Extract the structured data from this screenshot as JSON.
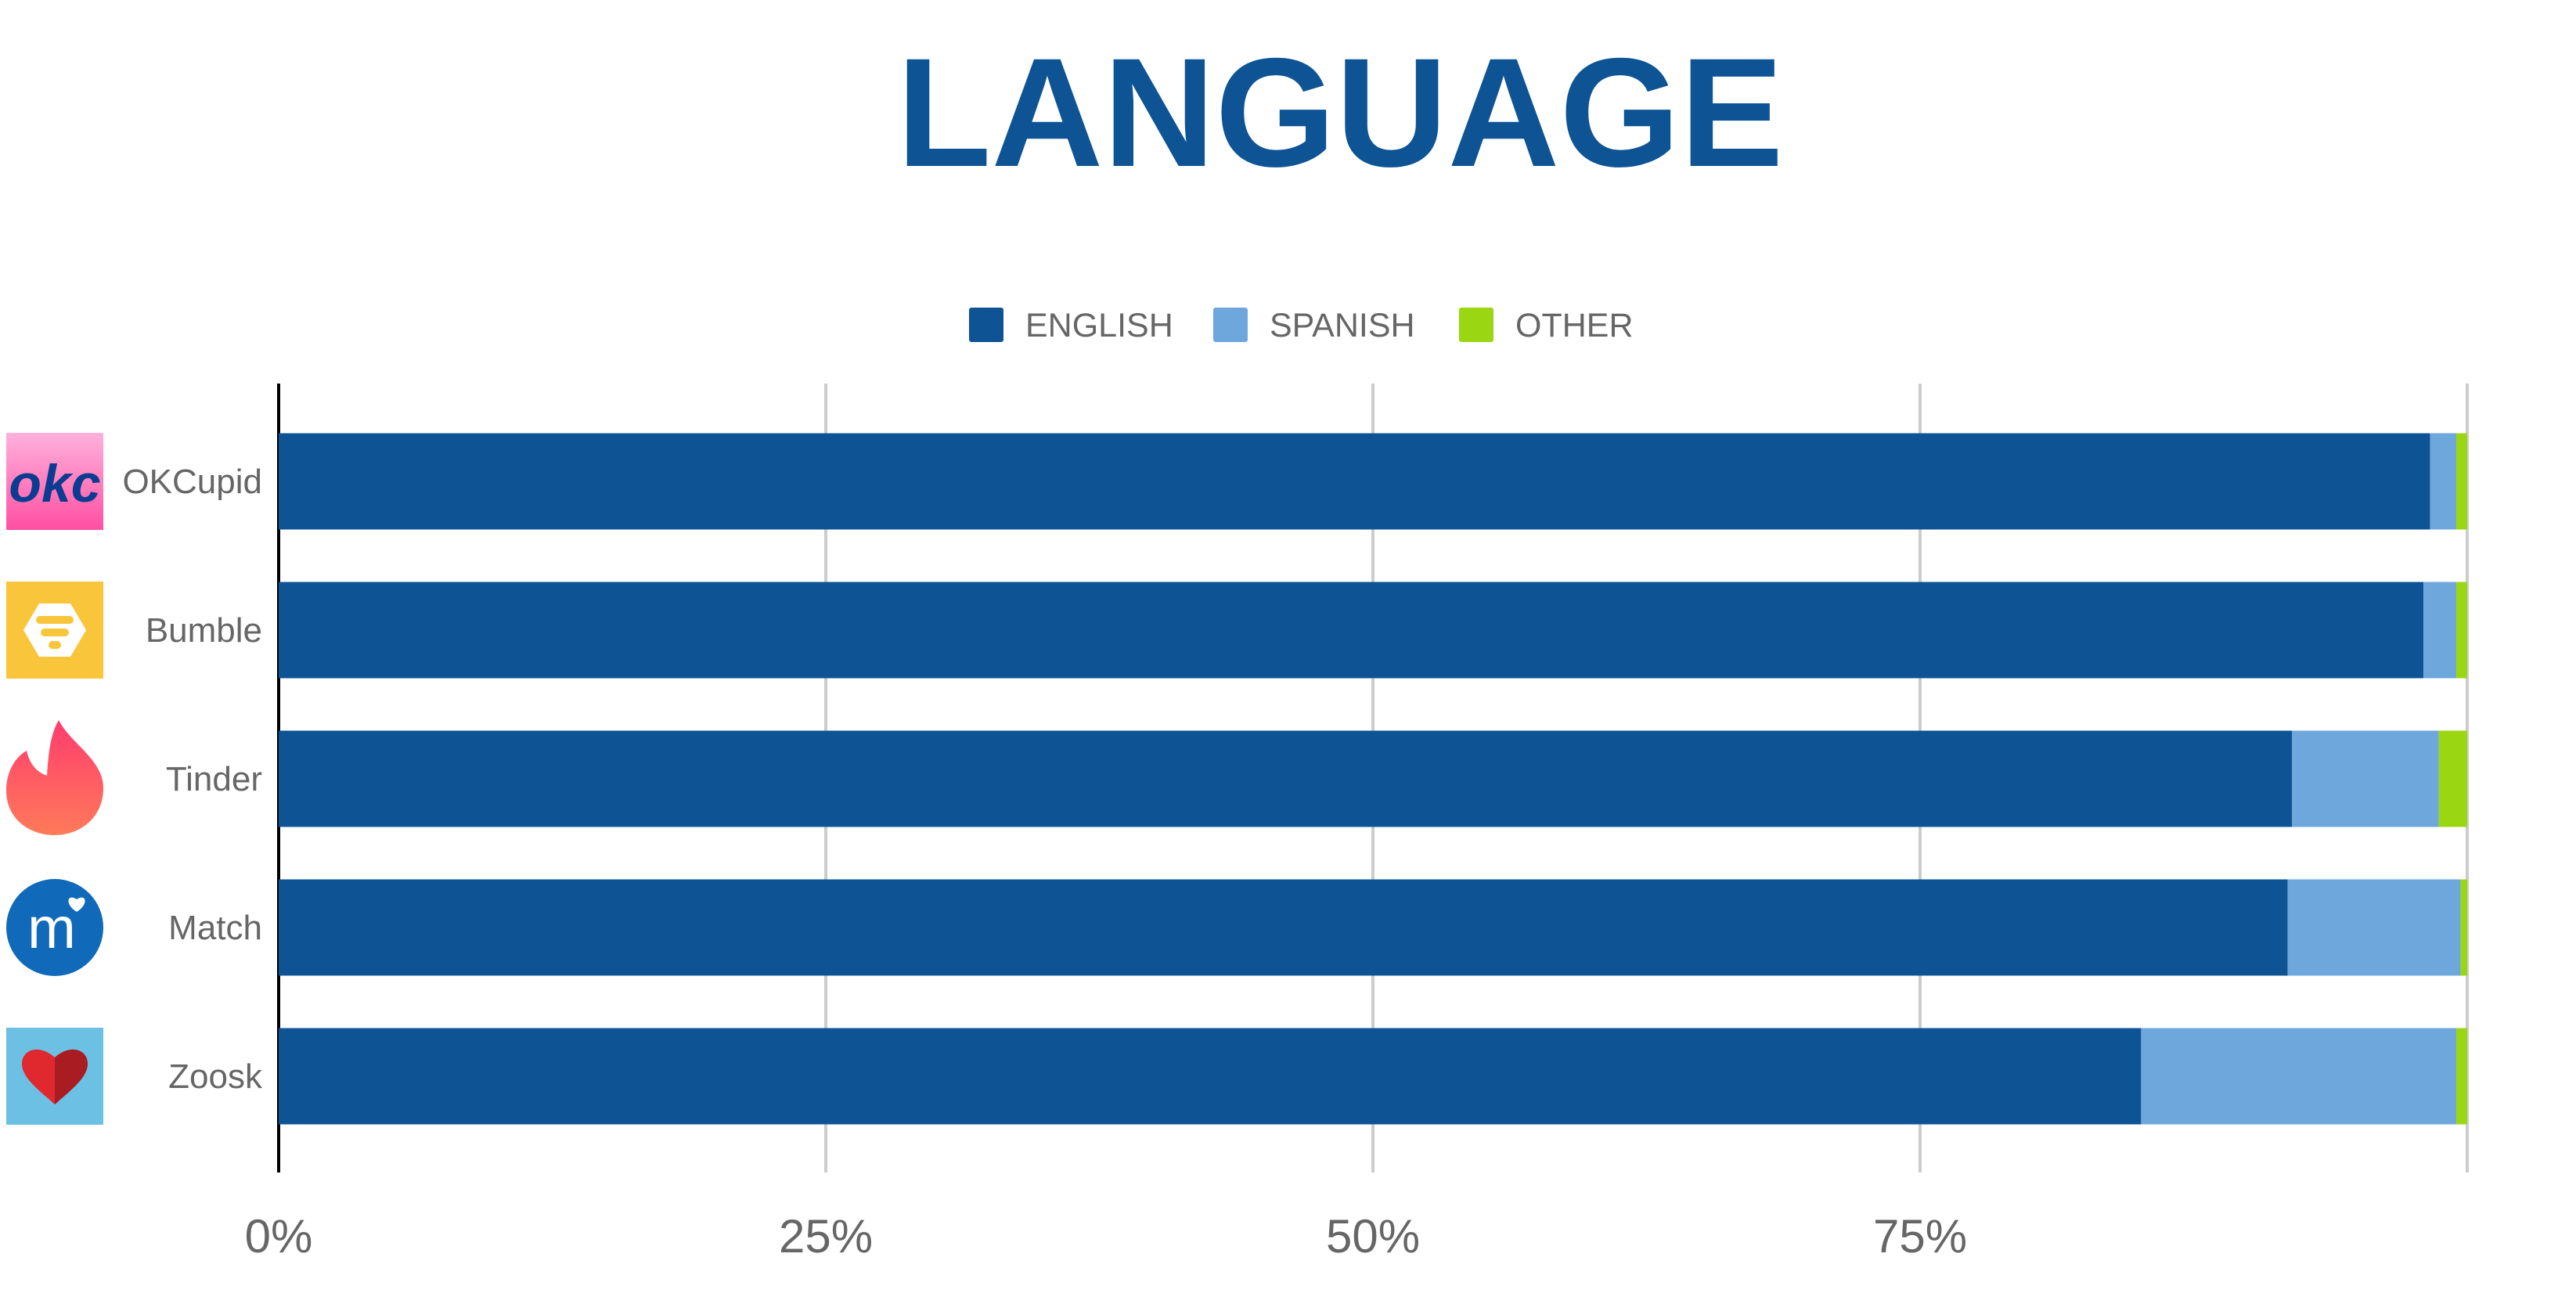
{
  "chart_data": {
    "type": "bar",
    "orientation": "horizontal",
    "stacked": true,
    "title": "LANGUAGE",
    "categories": [
      "OKCupid",
      "Bumble",
      "Tinder",
      "Match",
      "Zoosk"
    ],
    "series": [
      {
        "name": "ENGLISH",
        "color": "#0e5495",
        "values": [
          98.3,
          98.0,
          92.0,
          91.8,
          85.1
        ]
      },
      {
        "name": "SPANISH",
        "color": "#6ea7dc",
        "values": [
          1.2,
          1.5,
          6.7,
          7.9,
          14.4
        ]
      },
      {
        "name": "OTHER",
        "color": "#9ad712",
        "values": [
          0.5,
          0.5,
          1.3,
          0.3,
          0.5
        ]
      }
    ],
    "xlim": [
      0,
      100
    ],
    "x_ticks": [
      "0%",
      "25%",
      "50%",
      "75%"
    ],
    "grid": true,
    "legend": "top-center"
  },
  "colors": {
    "title": "#0e5495",
    "axis_text": "#666666",
    "grid": "#cccccc",
    "axis": "#000000"
  },
  "icons": [
    "okcupid-logo-icon",
    "bumble-logo-icon",
    "tinder-flame-icon",
    "match-logo-icon",
    "zoosk-heart-icon"
  ],
  "logo_texts": {
    "okcupid": "okc",
    "match": "m"
  }
}
